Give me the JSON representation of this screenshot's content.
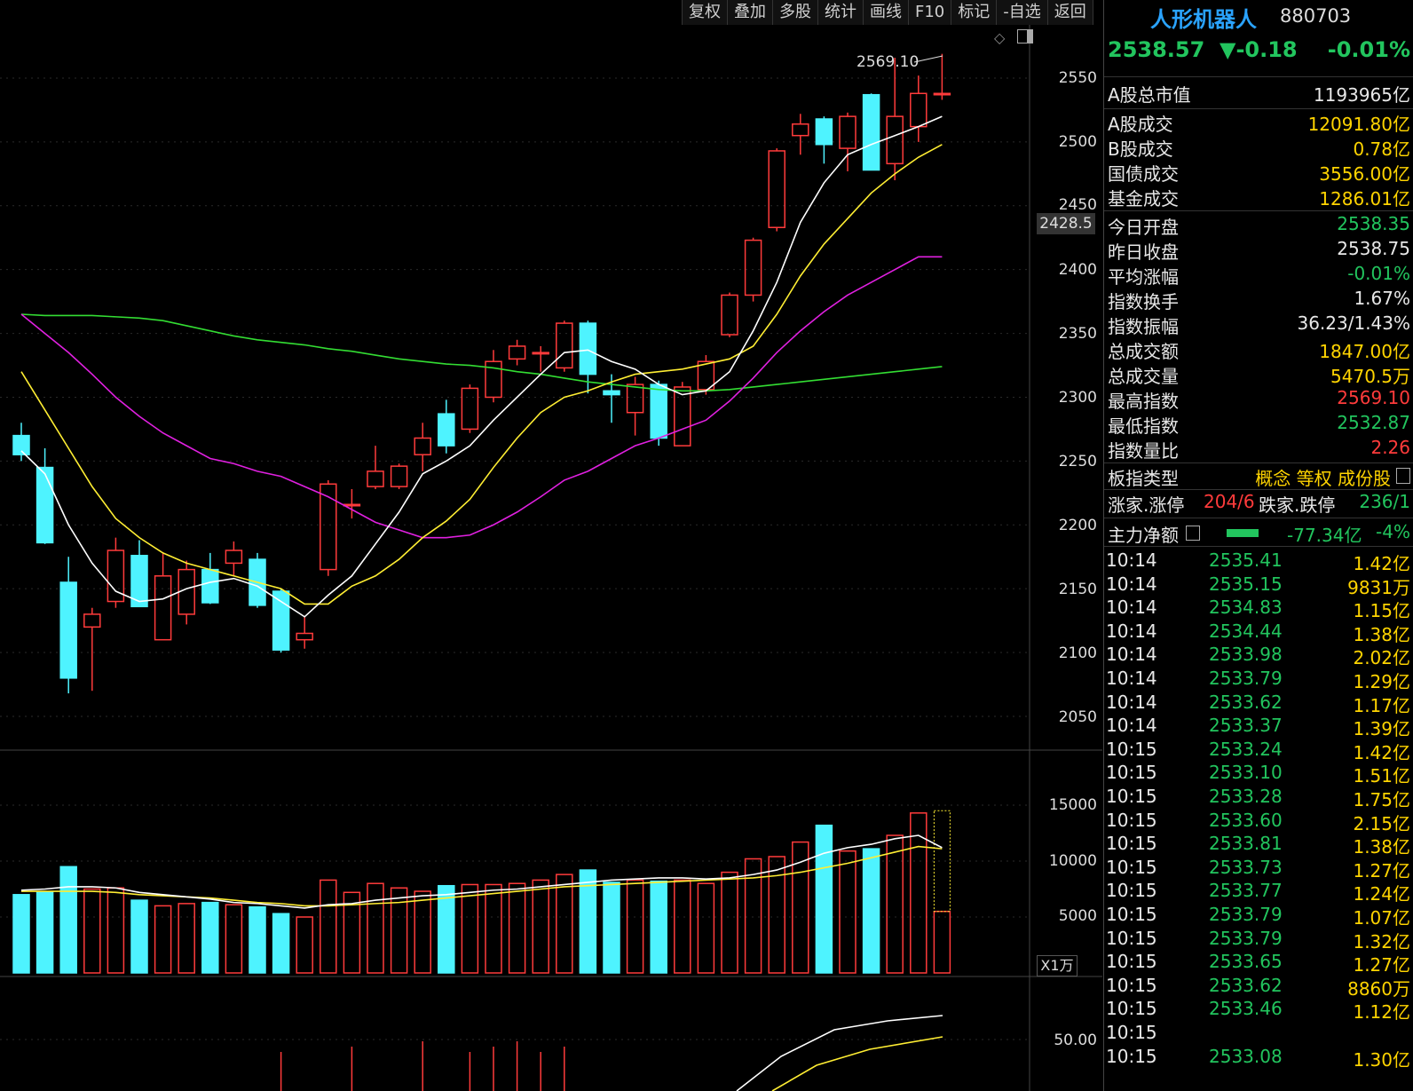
{
  "toolbar": [
    "复权",
    "叠加",
    "多股",
    "统计",
    "画线",
    "F10",
    "标记",
    "-自选",
    "返回"
  ],
  "colors": {
    "up": "#ff3b3b",
    "down": "#4ef3ff",
    "ma5": "#ffffff",
    "ma10": "#ffee33",
    "ma20": "#e020e0",
    "ma60": "#33dd33",
    "bg": "#000000"
  },
  "chart": {
    "price_axis": [
      "2550",
      "2500",
      "2450",
      "2400",
      "2350",
      "2300",
      "2250",
      "2200",
      "2150",
      "2100",
      "2050"
    ],
    "current_price_label": "2428.5",
    "high_label": "2569.10",
    "volume_axis": [
      "15000",
      "10000",
      "5000"
    ],
    "volume_unit": "X1万",
    "indicator_axis": [
      "50.00"
    ]
  },
  "chart_data": {
    "type": "candlestick",
    "candles": [
      {
        "o": 2270,
        "h": 2280,
        "l": 2250,
        "c": 2255
      },
      {
        "o": 2245,
        "h": 2260,
        "l": 2185,
        "c": 2186
      },
      {
        "o": 2155,
        "h": 2175,
        "l": 2068,
        "c": 2080
      },
      {
        "o": 2120,
        "h": 2135,
        "l": 2070,
        "c": 2130
      },
      {
        "o": 2140,
        "h": 2190,
        "l": 2135,
        "c": 2180
      },
      {
        "o": 2176,
        "h": 2188,
        "l": 2138,
        "c": 2136
      },
      {
        "o": 2110,
        "h": 2178,
        "l": 2110,
        "c": 2160
      },
      {
        "o": 2130,
        "h": 2172,
        "l": 2122,
        "c": 2165
      },
      {
        "o": 2165,
        "h": 2178,
        "l": 2138,
        "c": 2139
      },
      {
        "o": 2170,
        "h": 2187,
        "l": 2160,
        "c": 2180
      },
      {
        "o": 2173,
        "h": 2178,
        "l": 2135,
        "c": 2137
      },
      {
        "o": 2148,
        "h": 2150,
        "l": 2100,
        "c": 2102
      },
      {
        "o": 2110,
        "h": 2128,
        "l": 2103,
        "c": 2115
      },
      {
        "o": 2165,
        "h": 2235,
        "l": 2160,
        "c": 2232
      },
      {
        "o": 2215,
        "h": 2228,
        "l": 2205,
        "c": 2216
      },
      {
        "o": 2230,
        "h": 2262,
        "l": 2228,
        "c": 2242
      },
      {
        "o": 2230,
        "h": 2248,
        "l": 2228,
        "c": 2246
      },
      {
        "o": 2255,
        "h": 2280,
        "l": 2242,
        "c": 2268
      },
      {
        "o": 2287,
        "h": 2298,
        "l": 2256,
        "c": 2262
      },
      {
        "o": 2275,
        "h": 2310,
        "l": 2272,
        "c": 2307
      },
      {
        "o": 2300,
        "h": 2337,
        "l": 2296,
        "c": 2328
      },
      {
        "o": 2330,
        "h": 2345,
        "l": 2325,
        "c": 2340
      },
      {
        "o": 2335,
        "h": 2340,
        "l": 2320,
        "c": 2335
      },
      {
        "o": 2323,
        "h": 2360,
        "l": 2320,
        "c": 2358
      },
      {
        "o": 2358,
        "h": 2360,
        "l": 2303,
        "c": 2318
      },
      {
        "o": 2305,
        "h": 2318,
        "l": 2280,
        "c": 2302
      },
      {
        "o": 2288,
        "h": 2316,
        "l": 2270,
        "c": 2310
      },
      {
        "o": 2310,
        "h": 2313,
        "l": 2262,
        "c": 2268
      },
      {
        "o": 2262,
        "h": 2312,
        "l": 2262,
        "c": 2308
      },
      {
        "o": 2306,
        "h": 2333,
        "l": 2302,
        "c": 2328
      },
      {
        "o": 2349,
        "h": 2382,
        "l": 2347,
        "c": 2380
      },
      {
        "o": 2380,
        "h": 2425,
        "l": 2375,
        "c": 2423
      },
      {
        "o": 2433,
        "h": 2495,
        "l": 2430,
        "c": 2493
      },
      {
        "o": 2505,
        "h": 2522,
        "l": 2490,
        "c": 2514
      },
      {
        "o": 2518,
        "h": 2520,
        "l": 2483,
        "c": 2498
      },
      {
        "o": 2495,
        "h": 2523,
        "l": 2477,
        "c": 2520
      },
      {
        "o": 2537,
        "h": 2538,
        "l": 2478,
        "c": 2478
      },
      {
        "o": 2483,
        "h": 2566,
        "l": 2470,
        "c": 2520
      },
      {
        "o": 2512,
        "h": 2552,
        "l": 2500,
        "c": 2538
      },
      {
        "o": 2538,
        "h": 2569,
        "l": 2533,
        "c": 2538
      }
    ],
    "ma5": [
      2258,
      2240,
      2200,
      2170,
      2148,
      2140,
      2142,
      2150,
      2155,
      2158,
      2152,
      2140,
      2128,
      2145,
      2160,
      2185,
      2210,
      2240,
      2250,
      2262,
      2282,
      2300,
      2318,
      2335,
      2337,
      2328,
      2322,
      2310,
      2302,
      2305,
      2320,
      2352,
      2390,
      2437,
      2468,
      2490,
      2498,
      2505,
      2512,
      2520
    ],
    "ma10": [
      2320,
      2290,
      2260,
      2230,
      2205,
      2190,
      2178,
      2170,
      2165,
      2160,
      2155,
      2150,
      2138,
      2138,
      2152,
      2160,
      2173,
      2190,
      2203,
      2220,
      2245,
      2268,
      2288,
      2300,
      2305,
      2312,
      2318,
      2320,
      2322,
      2326,
      2330,
      2340,
      2365,
      2395,
      2420,
      2440,
      2460,
      2475,
      2488,
      2498
    ],
    "ma20": [
      2365,
      2350,
      2335,
      2318,
      2300,
      2285,
      2272,
      2262,
      2252,
      2248,
      2242,
      2238,
      2230,
      2222,
      2212,
      2202,
      2196,
      2190,
      2190,
      2192,
      2200,
      2210,
      2222,
      2235,
      2242,
      2252,
      2262,
      2268,
      2275,
      2282,
      2297,
      2315,
      2335,
      2352,
      2367,
      2380,
      2390,
      2400,
      2410,
      2410
    ],
    "ma60": [
      2365,
      2364,
      2364,
      2364,
      2363,
      2362,
      2360,
      2356,
      2352,
      2348,
      2345,
      2343,
      2341,
      2338,
      2336,
      2333,
      2330,
      2328,
      2326,
      2325,
      2323,
      2320,
      2318,
      2315,
      2312,
      2310,
      2308,
      2306,
      2305,
      2305,
      2306,
      2308,
      2310,
      2312,
      2314,
      2316,
      2318,
      2320,
      2322,
      2324
    ],
    "volume": [
      7000,
      7200,
      9500,
      7500,
      7600,
      6500,
      6000,
      6200,
      6300,
      6100,
      5900,
      5300,
      5000,
      8300,
      7200,
      8000,
      7600,
      7300,
      7800,
      7900,
      7900,
      8000,
      8300,
      8800,
      9200,
      8100,
      8300,
      8200,
      8300,
      8000,
      9000,
      10200,
      10400,
      11700,
      13200,
      10900,
      11100,
      12300,
      14300,
      5500
    ],
    "vol_ma5": [
      7400,
      7500,
      7700,
      7700,
      7600,
      7200,
      7000,
      6800,
      6600,
      6300,
      6200,
      6000,
      5800,
      6100,
      6200,
      6500,
      6700,
      6900,
      7000,
      7200,
      7400,
      7500,
      7700,
      7900,
      8100,
      8300,
      8400,
      8500,
      8500,
      8400,
      8500,
      8800,
      9200,
      9900,
      10700,
      11200,
      11500,
      12000,
      12300,
      11200
    ],
    "vol_ma10": [
      7300,
      7300,
      7300,
      7300,
      7200,
      7000,
      6900,
      6800,
      6700,
      6500,
      6300,
      6200,
      6000,
      6000,
      6100,
      6200,
      6300,
      6500,
      6700,
      6900,
      7100,
      7300,
      7500,
      7700,
      7800,
      7900,
      8000,
      8100,
      8200,
      8300,
      8400,
      8500,
      8700,
      9000,
      9400,
      9800,
      10300,
      10800,
      11300,
      11100
    ]
  },
  "side": {
    "title": "人形机器人",
    "code": "880703",
    "price": "2538.57",
    "change": "▼-0.18",
    "change_pct": "-0.01%",
    "stats": [
      {
        "label": "A股总市值",
        "value": "1193965亿",
        "color": "w"
      },
      {
        "label": "A股成交",
        "value": "12091.80亿",
        "color": "y"
      },
      {
        "label": "B股成交",
        "value": "0.78亿",
        "color": "y"
      },
      {
        "label": "国债成交",
        "value": "3556.00亿",
        "color": "y"
      },
      {
        "label": "基金成交",
        "value": "1286.01亿",
        "color": "y"
      },
      {
        "label": "今日开盘",
        "value": "2538.35",
        "color": "g"
      },
      {
        "label": "昨日收盘",
        "value": "2538.75",
        "color": "w"
      },
      {
        "label": "平均涨幅",
        "value": "-0.01%",
        "color": "g"
      },
      {
        "label": "指数换手",
        "value": "1.67%",
        "color": "w"
      },
      {
        "label": "指数振幅",
        "value": "36.23/1.43%",
        "color": "w"
      },
      {
        "label": "总成交额",
        "value": "1847.00亿",
        "color": "y"
      },
      {
        "label": "总成交量",
        "value": "5470.5万",
        "color": "y"
      },
      {
        "label": "最高指数",
        "value": "2569.10",
        "color": "r"
      },
      {
        "label": "最低指数",
        "value": "2532.87",
        "color": "g"
      },
      {
        "label": "指数量比",
        "value": "2.26",
        "color": "r"
      }
    ],
    "board_type_label": "板指类型",
    "board_type_value": "概念 等权 成份股",
    "updown_label": "涨家.涨停",
    "updown_up": "204/6",
    "updown_down_label": "跌家.跌停",
    "updown_down": "236/1",
    "netflow_label": "主力净额",
    "netflow_value": "-77.34亿",
    "netflow_pct": "-4%",
    "ticks": [
      {
        "t": "10:14",
        "p": "2535.41",
        "v": "1.42亿"
      },
      {
        "t": "10:14",
        "p": "2535.15",
        "v": "9831万"
      },
      {
        "t": "10:14",
        "p": "2534.83",
        "v": "1.15亿"
      },
      {
        "t": "10:14",
        "p": "2534.44",
        "v": "1.38亿"
      },
      {
        "t": "10:14",
        "p": "2533.98",
        "v": "2.02亿"
      },
      {
        "t": "10:14",
        "p": "2533.79",
        "v": "1.29亿"
      },
      {
        "t": "10:14",
        "p": "2533.62",
        "v": "1.17亿"
      },
      {
        "t": "10:14",
        "p": "2533.37",
        "v": "1.39亿"
      },
      {
        "t": "10:15",
        "p": "2533.24",
        "v": "1.42亿"
      },
      {
        "t": "10:15",
        "p": "2533.10",
        "v": "1.51亿"
      },
      {
        "t": "10:15",
        "p": "2533.28",
        "v": "1.75亿"
      },
      {
        "t": "10:15",
        "p": "2533.60",
        "v": "2.15亿"
      },
      {
        "t": "10:15",
        "p": "2533.81",
        "v": "1.38亿"
      },
      {
        "t": "10:15",
        "p": "2533.73",
        "v": "1.27亿"
      },
      {
        "t": "10:15",
        "p": "2533.77",
        "v": "1.24亿"
      },
      {
        "t": "10:15",
        "p": "2533.79",
        "v": "1.07亿"
      },
      {
        "t": "10:15",
        "p": "2533.79",
        "v": "1.32亿"
      },
      {
        "t": "10:15",
        "p": "2533.65",
        "v": "1.27亿"
      },
      {
        "t": "10:15",
        "p": "2533.62",
        "v": "8860万"
      },
      {
        "t": "10:15",
        "p": "2533.46",
        "v": "1.12亿"
      },
      {
        "t": "10:15",
        "p": "",
        "v": ""
      },
      {
        "t": "10:15",
        "p": "2533.08",
        "v": "1.30亿"
      }
    ]
  }
}
